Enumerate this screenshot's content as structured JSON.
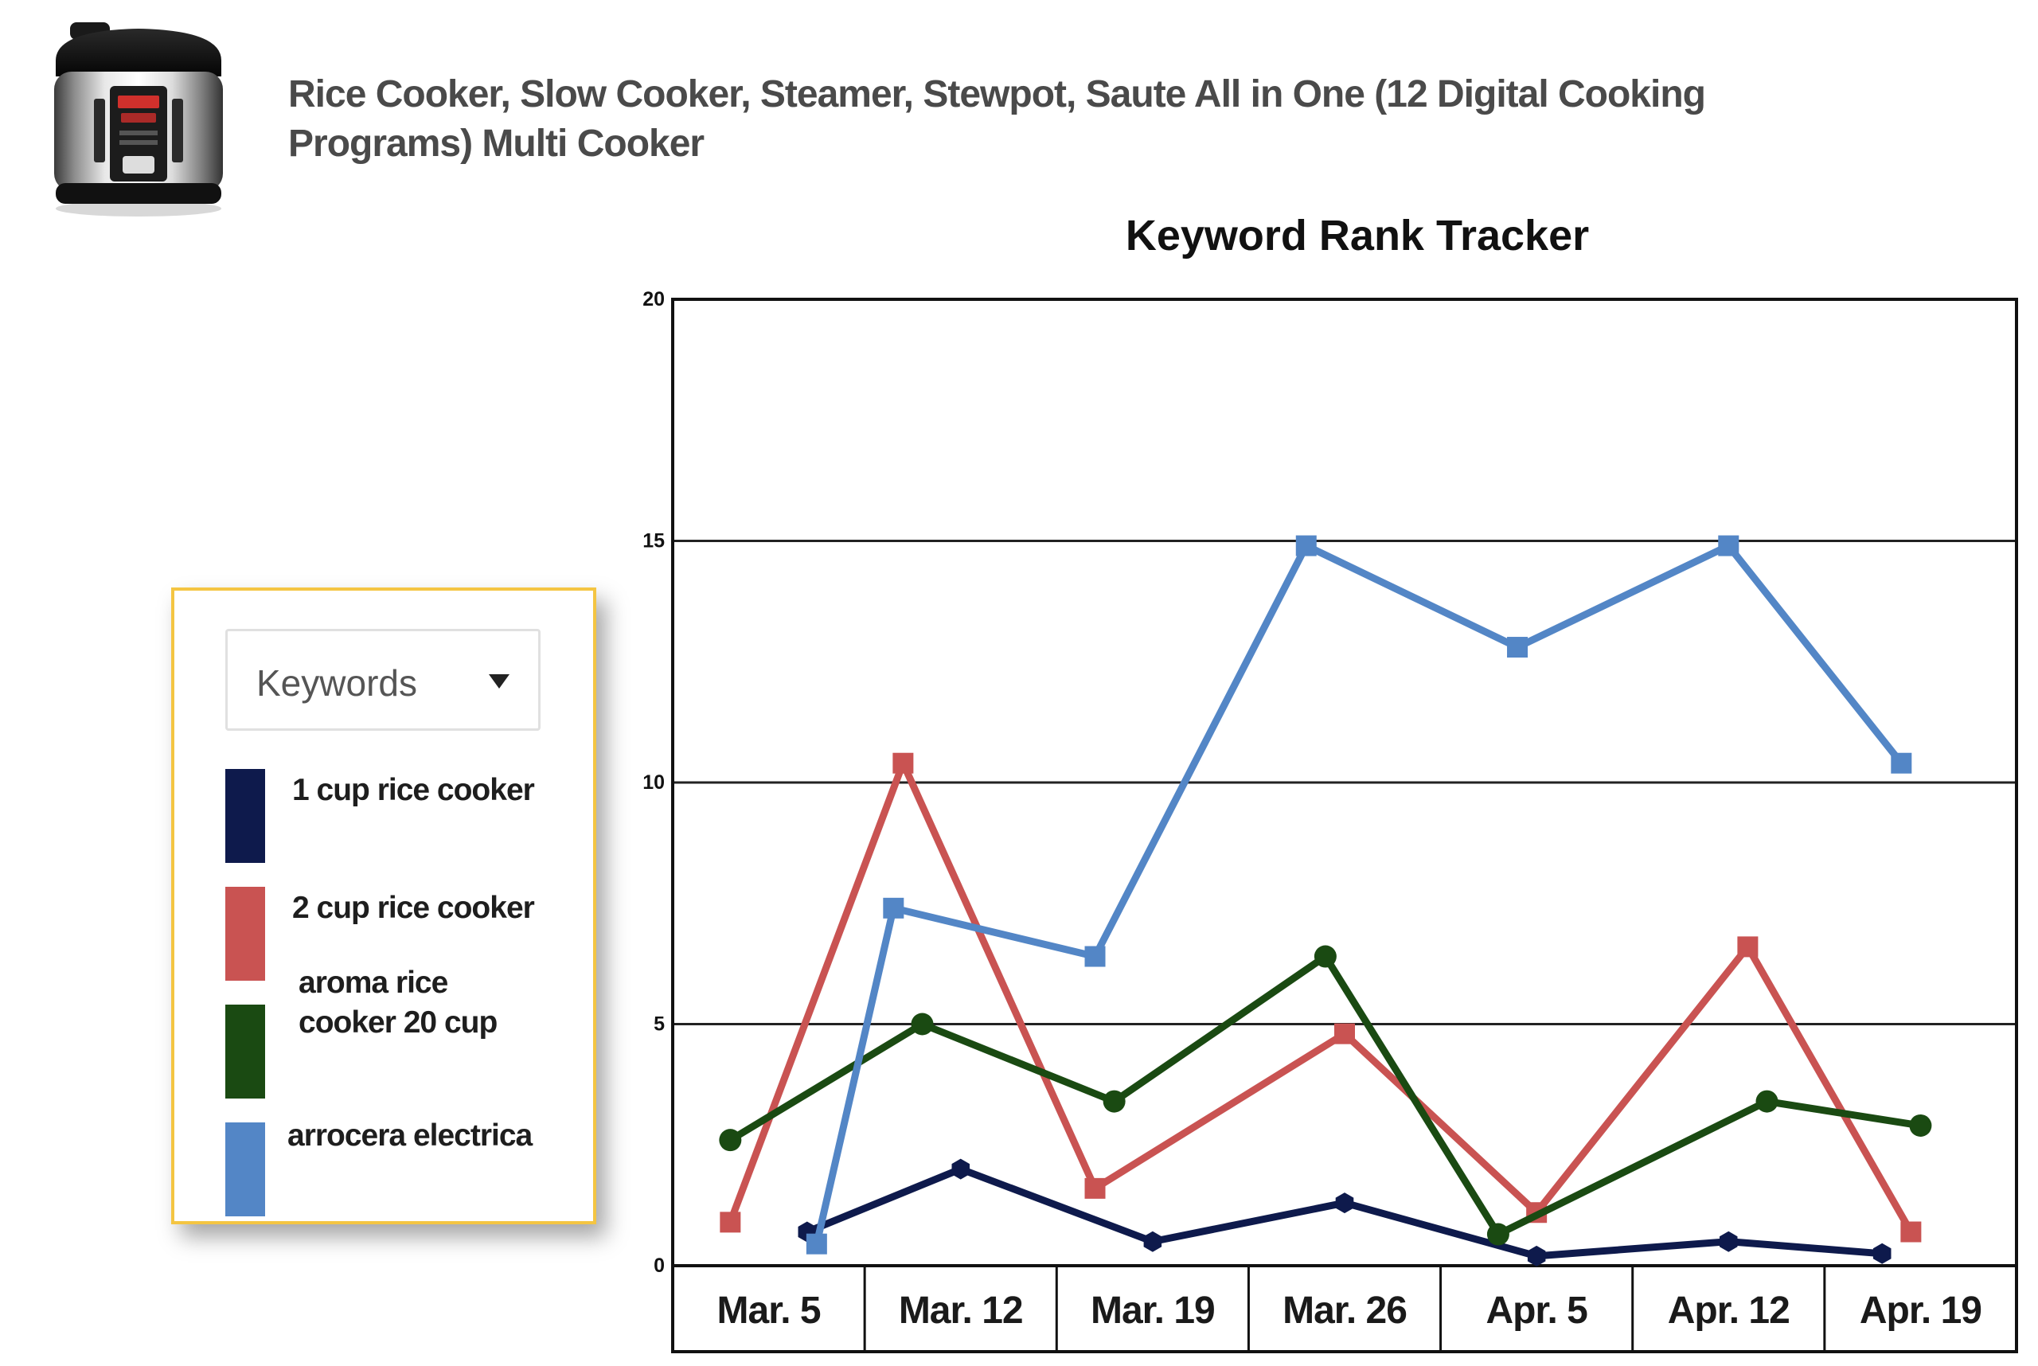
{
  "product": {
    "title": "Rice Cooker, Slow Cooker, Steamer, Stewpot, Saute All in One (12 Digital Cooking Programs) Multi Cooker",
    "image_icon": "multi-cooker-product-photo"
  },
  "legend": {
    "dropdown_label": "Keywords",
    "dropdown_icon": "caret-down-icon",
    "items": [
      {
        "label": "1 cup rice cooker",
        "color": "#0e1a4c"
      },
      {
        "label": "2 cup rice cooker",
        "color": "#c95352"
      },
      {
        "label": "aroma rice cooker 20 cup",
        "color": "#1a4a12"
      },
      {
        "label": "arrocera electrica",
        "color": "#5386c6"
      }
    ]
  },
  "chart_data": {
    "type": "line",
    "title": "Keyword Rank Tracker",
    "xlabel": "",
    "ylabel": "",
    "categories": [
      "Mar. 5",
      "Mar. 12",
      "Mar. 19",
      "Mar. 26",
      "Apr. 5",
      "Apr. 12",
      "Apr. 19"
    ],
    "ylim": [
      0,
      20
    ],
    "yticks": [
      "0",
      "5",
      "10",
      "15",
      "20"
    ],
    "grid": "horizontal",
    "series": [
      {
        "name": "1 cup rice cooker",
        "color": "#0e1a4c",
        "marker": "hexagon",
        "points": [
          [
            0.2,
            0.7
          ],
          [
            1.0,
            2.0
          ],
          [
            2.0,
            0.5
          ],
          [
            3.0,
            1.3
          ],
          [
            4.0,
            0.2
          ],
          [
            5.0,
            0.5
          ],
          [
            5.8,
            0.25
          ]
        ]
      },
      {
        "name": "2 cup rice cooker",
        "color": "#c95352",
        "marker": "square",
        "points": [
          [
            -0.2,
            0.9
          ],
          [
            0.7,
            10.4
          ],
          [
            1.7,
            1.6
          ],
          [
            3.0,
            4.8
          ],
          [
            4.0,
            1.1
          ],
          [
            5.1,
            6.6
          ],
          [
            5.95,
            0.7
          ]
        ]
      },
      {
        "name": "aroma rice cooker 20 cup",
        "color": "#1a4a12",
        "marker": "circle",
        "points": [
          [
            -0.2,
            2.6
          ],
          [
            0.8,
            5.0
          ],
          [
            1.8,
            3.4
          ],
          [
            2.9,
            6.4
          ],
          [
            3.8,
            0.65
          ],
          [
            5.2,
            3.4
          ],
          [
            6.0,
            2.9
          ]
        ]
      },
      {
        "name": "arrocera electrica",
        "color": "#5386c6",
        "marker": "square",
        "points": [
          [
            0.25,
            0.45
          ],
          [
            0.65,
            7.4
          ],
          [
            1.7,
            6.4
          ],
          [
            2.8,
            14.9
          ],
          [
            3.9,
            12.8
          ],
          [
            5.0,
            14.9
          ],
          [
            5.9,
            10.4
          ]
        ]
      }
    ]
  }
}
